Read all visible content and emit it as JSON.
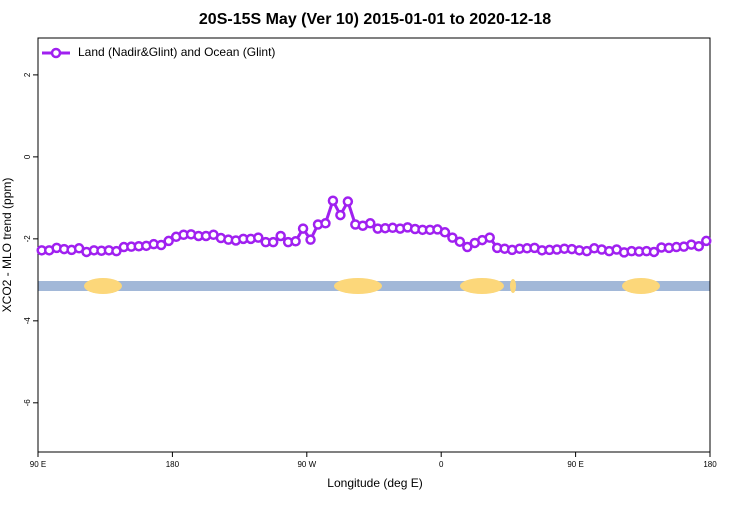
{
  "chart_data": {
    "type": "line",
    "title": "20S-15S May (Ver 10)   2015-01-01 to 2020-12-18",
    "xlabel": "Longitude (deg E)",
    "ylabel": "XCO2 - MLO trend (ppm)",
    "xlim": [
      90,
      540
    ],
    "xticks": [
      {
        "value": 90,
        "label": "90 E"
      },
      {
        "value": 180,
        "label": "180"
      },
      {
        "value": 270,
        "label": "90 W"
      },
      {
        "value": 360,
        "label": "0"
      },
      {
        "value": 450,
        "label": "90 E"
      },
      {
        "value": 540,
        "label": "180"
      }
    ],
    "ylim": [
      -7.2,
      2.9
    ],
    "yticks": [
      2,
      0,
      -2,
      -4,
      -6
    ],
    "legend": "top-left",
    "x": [
      92.5,
      97.5,
      102.5,
      107.5,
      112.5,
      117.5,
      122.5,
      127.5,
      132.5,
      137.5,
      142.5,
      147.5,
      152.5,
      157.5,
      162.5,
      167.5,
      172.5,
      177.5,
      182.5,
      187.5,
      192.5,
      197.5,
      202.5,
      207.5,
      212.5,
      217.5,
      222.5,
      227.5,
      232.5,
      237.5,
      242.5,
      247.5,
      252.5,
      257.5,
      262.5,
      267.5,
      272.5,
      277.5,
      282.5,
      287.5,
      292.5,
      297.5,
      302.5,
      307.5,
      312.5,
      317.5,
      322.5,
      327.5,
      332.5,
      337.5,
      342.5,
      347.5,
      352.5,
      357.5,
      362.5,
      367.5,
      372.5,
      377.5,
      382.5,
      387.5,
      392.5,
      397.5,
      402.5,
      407.5,
      412.5,
      417.5,
      422.5,
      427.5,
      432.5,
      437.5,
      442.5,
      447.5,
      452.5,
      457.5,
      462.5,
      467.5,
      472.5,
      477.5,
      482.5,
      487.5,
      492.5,
      497.5,
      502.5,
      507.5,
      512.5,
      517.5,
      522.5,
      527.5,
      532.5,
      537.5
    ],
    "series": [
      {
        "name": "Land (Nadir&Glint) and Ocean (Glint)",
        "color": "#a020f0",
        "values": [
          -2.28,
          -2.28,
          -2.22,
          -2.25,
          -2.27,
          -2.23,
          -2.32,
          -2.28,
          -2.29,
          -2.28,
          -2.3,
          -2.2,
          -2.19,
          -2.18,
          -2.17,
          -2.13,
          -2.15,
          -2.05,
          -1.95,
          -1.9,
          -1.89,
          -1.93,
          -1.93,
          -1.9,
          -1.98,
          -2.02,
          -2.04,
          -2.0,
          -2.0,
          -1.97,
          -2.08,
          -2.08,
          -1.93,
          -2.08,
          -2.06,
          -1.75,
          -2.02,
          -1.65,
          -1.62,
          -1.07,
          -1.42,
          -1.09,
          -1.65,
          -1.68,
          -1.62,
          -1.75,
          -1.74,
          -1.73,
          -1.75,
          -1.72,
          -1.76,
          -1.78,
          -1.78,
          -1.77,
          -1.84,
          -1.97,
          -2.07,
          -2.2,
          -2.1,
          -2.03,
          -1.97,
          -2.22,
          -2.24,
          -2.27,
          -2.24,
          -2.23,
          -2.22,
          -2.28,
          -2.27,
          -2.26,
          -2.24,
          -2.25,
          -2.28,
          -2.3,
          -2.23,
          -2.26,
          -2.3,
          -2.26,
          -2.33,
          -2.3,
          -2.31,
          -2.3,
          -2.32,
          -2.21,
          -2.22,
          -2.2,
          -2.19,
          -2.14,
          -2.18,
          -2.05
        ]
      }
    ]
  }
}
